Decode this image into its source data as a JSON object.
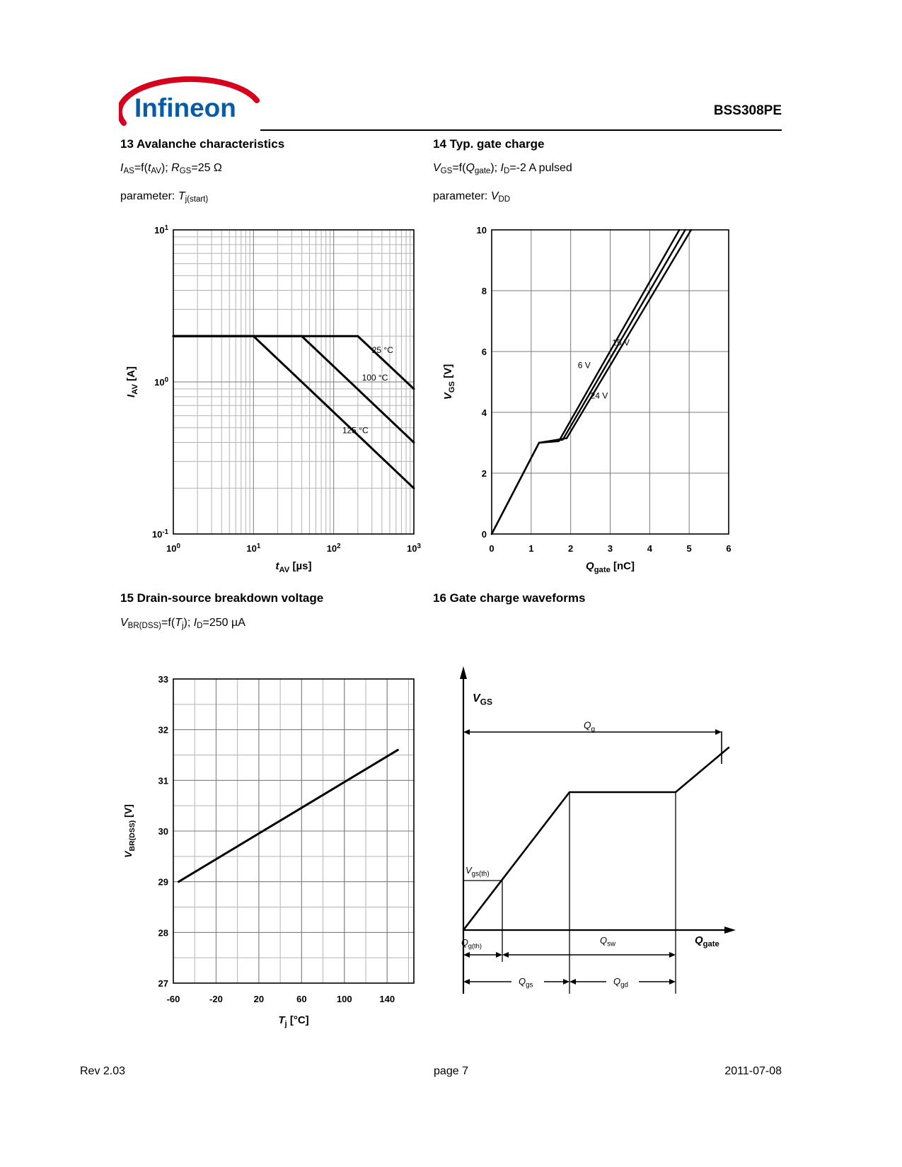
{
  "colors": {
    "brand_blue": "#0A5BA5",
    "brand_red": "#D6001C",
    "curve": "#000000",
    "grid_minor": "#b3b3b3",
    "grid_major": "#7a7a7a"
  },
  "header": {
    "brand": "Infineon",
    "part_number": "BSS308PE"
  },
  "sections": {
    "s13": {
      "title": "13 Avalanche characteristics",
      "line1": [
        [
          "i",
          "I"
        ],
        [
          "sub",
          "AS"
        ],
        [
          "",
          "=f("
        ],
        [
          "i",
          "t"
        ],
        [
          "sub",
          "AV"
        ],
        [
          "",
          "); "
        ],
        [
          "i",
          "R"
        ],
        [
          "sub",
          "GS"
        ],
        [
          "",
          "=25 Ω"
        ]
      ],
      "line2": [
        [
          "",
          "parameter: "
        ],
        [
          "i",
          "T"
        ],
        [
          "sub",
          "j(start)"
        ]
      ]
    },
    "s14": {
      "title": "14 Typ. gate charge",
      "line1": [
        [
          "i",
          "V"
        ],
        [
          "sub",
          "GS"
        ],
        [
          "",
          "=f("
        ],
        [
          "i",
          "Q"
        ],
        [
          "sub",
          "gate"
        ],
        [
          "",
          "); "
        ],
        [
          "i",
          "I"
        ],
        [
          "sub",
          "D"
        ],
        [
          "",
          "=-2 A pulsed"
        ]
      ],
      "line2": [
        [
          "",
          "parameter: "
        ],
        [
          "i",
          "V"
        ],
        [
          "sub",
          "DD"
        ]
      ]
    },
    "s15": {
      "title": "15 Drain-source breakdown voltage",
      "line1": [
        [
          "i",
          "V"
        ],
        [
          "sub",
          "BR(DSS)"
        ],
        [
          "",
          "=f("
        ],
        [
          "i",
          "T"
        ],
        [
          "sub",
          "j"
        ],
        [
          "",
          "); "
        ],
        [
          "i",
          "I"
        ],
        [
          "sub",
          "D"
        ],
        [
          "",
          "=250 µA"
        ]
      ]
    },
    "s16": {
      "title": "16 Gate charge waveforms"
    }
  },
  "footer": {
    "rev": "Rev 2.03",
    "page": "page 7",
    "date": "2011-07-08"
  },
  "chart_data": [
    {
      "id": "avalanche",
      "type": "line",
      "title": "13 Avalanche characteristics",
      "xscale": "log",
      "yscale": "log",
      "xlim": [
        1,
        1000
      ],
      "ylim": [
        0.1,
        10
      ],
      "xlabel": "t_AV [µs]",
      "ylabel": "I_AV [A]",
      "xlabel_parts": [
        [
          "bi",
          "t"
        ],
        [
          "bsub",
          "AV"
        ],
        [
          "b",
          " [µs]"
        ]
      ],
      "ylabel_parts": [
        [
          "bi",
          "I"
        ],
        [
          "bsub",
          "AV"
        ],
        [
          "b",
          " [A]"
        ]
      ],
      "grid": "log-both",
      "series": [
        {
          "name": "25 °C",
          "points": [
            [
              1,
              2
            ],
            [
              200,
              2
            ],
            [
              1000,
              0.9
            ]
          ],
          "label_at": [
            300,
            1.55
          ]
        },
        {
          "name": "100 °C",
          "points": [
            [
              1,
              2
            ],
            [
              40,
              2
            ],
            [
              1000,
              0.4
            ]
          ],
          "label_at": [
            225,
            1.02
          ]
        },
        {
          "name": "125 °C",
          "points": [
            [
              1,
              2
            ],
            [
              10,
              2
            ],
            [
              1000,
              0.2
            ]
          ],
          "label_at": [
            128,
            0.46
          ]
        }
      ]
    },
    {
      "id": "gate_charge",
      "type": "line",
      "title": "14 Typ. gate charge",
      "xlim": [
        0,
        6
      ],
      "ylim": [
        0,
        10
      ],
      "xticks": [
        0,
        1,
        2,
        3,
        4,
        5,
        6
      ],
      "yticks": [
        0,
        2,
        4,
        6,
        8,
        10
      ],
      "xlabel": "Q_gate [nC]",
      "ylabel": "V_GS [V]",
      "xlabel_parts": [
        [
          "bi",
          "Q"
        ],
        [
          "bsub",
          "gate"
        ],
        [
          "b",
          " [nC]"
        ]
      ],
      "ylabel_parts": [
        [
          "bi",
          "V"
        ],
        [
          "bsub",
          "GS"
        ],
        [
          "b",
          " [V]"
        ]
      ],
      "series": [
        {
          "name": "6 V",
          "points": [
            [
              0,
              0
            ],
            [
              1.2,
              3.0
            ],
            [
              1.7,
              3.05
            ],
            [
              4.75,
              10
            ]
          ],
          "label_at": [
            2.18,
            5.45
          ]
        },
        {
          "name": "15 V",
          "points": [
            [
              0,
              0
            ],
            [
              1.2,
              3.0
            ],
            [
              1.8,
              3.1
            ],
            [
              4.9,
              10
            ]
          ],
          "label_at": [
            3.05,
            6.2
          ]
        },
        {
          "name": "24 V",
          "points": [
            [
              0,
              0
            ],
            [
              1.2,
              3.0
            ],
            [
              1.9,
              3.15
            ],
            [
              5.05,
              10
            ]
          ],
          "label_at": [
            2.5,
            4.45
          ]
        }
      ]
    },
    {
      "id": "breakdown_voltage",
      "type": "line",
      "title": "15 Drain-source breakdown voltage",
      "xlim": [
        -60,
        165
      ],
      "ylim": [
        27,
        33
      ],
      "xticks": [
        -60,
        -20,
        20,
        60,
        100,
        140
      ],
      "yticks": [
        27,
        28,
        29,
        30,
        31,
        32,
        33
      ],
      "minor_x_step": 20,
      "minor_y_step": 0.5,
      "xlabel": "T_j [°C]",
      "ylabel": "V_BR(DSS) [V]",
      "xlabel_parts": [
        [
          "bi",
          "T"
        ],
        [
          "bsub",
          "j"
        ],
        [
          "b",
          " [°C]"
        ]
      ],
      "ylabel_parts": [
        [
          "bi",
          "V"
        ],
        [
          "bsub",
          "BR(DSS)"
        ],
        [
          "b",
          " [V]"
        ]
      ],
      "series": [
        {
          "name": "V_BR(DSS)",
          "points": [
            [
              -55,
              29.0
            ],
            [
              150,
              31.6
            ]
          ]
        }
      ]
    },
    {
      "id": "gate_charge_waveform",
      "type": "diagram",
      "title": "16 Gate charge waveforms",
      "vaxis_label_parts": [
        [
          "bi",
          "V"
        ],
        [
          "bsub",
          "GS"
        ]
      ],
      "haxis_label_parts": [
        [
          "bi",
          "Q"
        ],
        [
          "bsub",
          "gate"
        ]
      ],
      "vth_label_parts": [
        [
          "i",
          "V"
        ],
        [
          "sub",
          "gs(th)"
        ]
      ],
      "qg_label_parts": [
        [
          "i",
          "Q"
        ],
        [
          "sub",
          "g"
        ]
      ],
      "qgth_label_parts": [
        [
          "i",
          "Q"
        ],
        [
          "sub",
          "g(th)"
        ]
      ],
      "qsw_label_parts": [
        [
          "i",
          "Q"
        ],
        [
          "sub",
          "sw"
        ]
      ],
      "qgs_label_parts": [
        [
          "i",
          "Q"
        ],
        [
          "sub",
          "gs"
        ]
      ],
      "qgd_label_parts": [
        [
          "i",
          "Q"
        ],
        [
          "sub",
          "gd"
        ]
      ],
      "waveform_points": [
        [
          0,
          0
        ],
        [
          150,
          195
        ],
        [
          300,
          195
        ],
        [
          375,
          258
        ]
      ],
      "vth_point": [
        55,
        70
      ],
      "plateau_x": [
        150,
        300
      ],
      "qg_end_x": 365,
      "qg_arrow_y": 280
    }
  ]
}
